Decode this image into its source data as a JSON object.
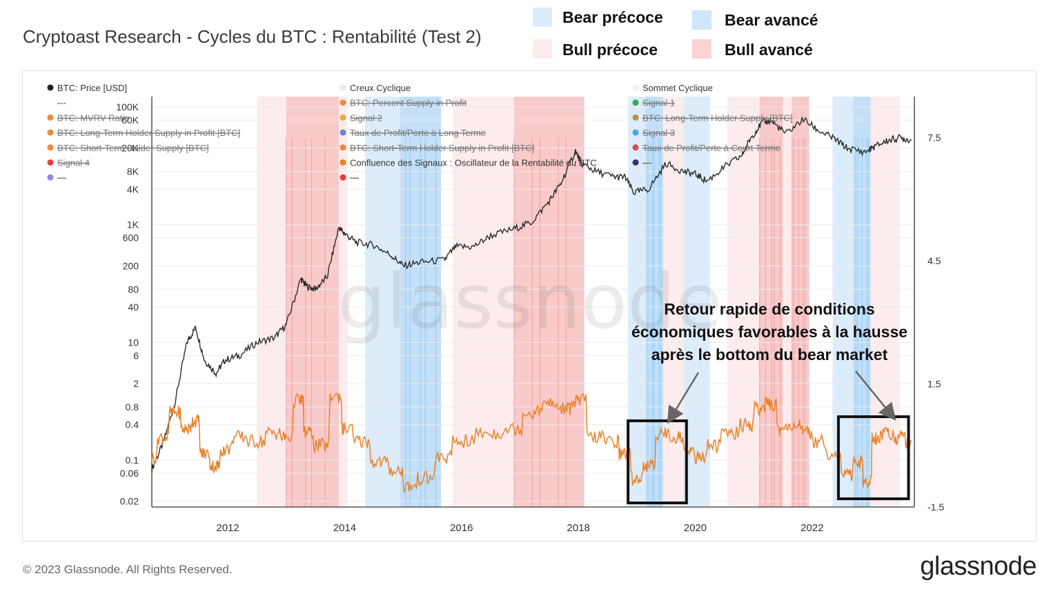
{
  "header": {
    "title": "Cryptoast Research - Cycles du BTC : Rentabilité (Test 2)"
  },
  "phase_legend": [
    {
      "label": "Bear précoce",
      "color": "#dcecfb"
    },
    {
      "label": "Bear avancé",
      "color": "#cfe5f9"
    },
    {
      "label": "Bull précoce",
      "color": "#fdeced"
    },
    {
      "label": "Bull avancé",
      "color": "#fad3d3"
    }
  ],
  "chart_legend": [
    {
      "label": "BTC: Price [USD]",
      "color": "#222222",
      "struck": false
    },
    {
      "label": "---",
      "color": "",
      "struck": false
    },
    {
      "label": "BTC: MVRV Ratio",
      "color": "#f0893a",
      "struck": true
    },
    {
      "label": "BTC: Long-Term Holder Supply in Profit [BTC]",
      "color": "#f0893a",
      "struck": true
    },
    {
      "label": "BTC: Short-Term Holder Supply [BTC]",
      "color": "#f0893a",
      "struck": true
    },
    {
      "label": "Signal 4",
      "color": "#e0403f",
      "struck": true
    },
    {
      "label": "---",
      "color": "#8b86e6",
      "struck": true
    },
    {
      "label": "Creux Cyclique",
      "color": "#dcecfb",
      "struck": false
    },
    {
      "label": "BTC: Percent Supply in Profit",
      "color": "#f0893a",
      "struck": true
    },
    {
      "label": "Signal 2",
      "color": "#f0a93a",
      "struck": true
    },
    {
      "label": "Taux de Profit/Perte à Long Terme",
      "color": "#6a86d6",
      "struck": true
    },
    {
      "label": "BTC: Short-Term Holder Supply in Profit [BTC]",
      "color": "#f0893a",
      "struck": true
    },
    {
      "label": "Confluence des Signaux : Oscillateur de la Rentabilité du BTC",
      "color": "#f0801a",
      "struck": false
    },
    {
      "label": "---",
      "color": "#e0403f",
      "struck": true
    },
    {
      "label": "Sommet Cyclique",
      "color": "#fdeced",
      "struck": false
    },
    {
      "label": "Signal 1",
      "color": "#3aa85a",
      "struck": true
    },
    {
      "label": "BTC: Long-Term Holder Supply [BTC]",
      "color": "#c09040",
      "struck": true
    },
    {
      "label": "Signal 3",
      "color": "#4aa8e0",
      "struck": true
    },
    {
      "label": "Taux de Profit/Perte à Court Terme",
      "color": "#d05050",
      "struck": true
    },
    {
      "label": "---",
      "color": "#2a3a66",
      "struck": true
    }
  ],
  "annotation": {
    "lines": [
      "Retour rapide de conditions",
      "économiques favorables à la hausse",
      "après le bottom du bear market"
    ]
  },
  "watermark": "glassnode",
  "footer": {
    "copyright": "© 2023 Glassnode. All Rights Reserved.",
    "brand": "glassnode"
  },
  "chart_data": {
    "type": "line",
    "x_ticks": [
      "2012",
      "2014",
      "2016",
      "2018",
      "2020",
      "2022"
    ],
    "x_range": [
      2010.7,
      2023.75
    ],
    "y_left_ticks": [
      "100K",
      "60K",
      "20K",
      "8K",
      "4K",
      "1K",
      "600",
      "200",
      "80",
      "40",
      "10",
      "6",
      "2",
      "0.8",
      "0.4",
      "0.1",
      "0.06",
      "0.02"
    ],
    "y_left_scale": "log",
    "y_left_range": [
      0.016,
      150000
    ],
    "y_right_ticks": [
      "7.5",
      "4.5",
      "1.5",
      "-1.5"
    ],
    "y_right_range": [
      -1.5,
      8.5
    ],
    "colors": {
      "price": "#2b2b2b",
      "oscillator": "#e8832a",
      "bull_early": "#fdeced",
      "bull_late": "#f8caca",
      "bear_early": "#dcecfb",
      "bear_late": "#c3e0f8"
    },
    "phases": [
      {
        "type": "bull_early",
        "start": 2012.5,
        "end": 2013.0
      },
      {
        "type": "bull_late",
        "start": 2013.0,
        "end": 2013.9
      },
      {
        "type": "bull_early",
        "start": 2013.9,
        "end": 2014.05
      },
      {
        "type": "bear_early",
        "start": 2014.35,
        "end": 2014.95
      },
      {
        "type": "bear_late",
        "start": 2014.95,
        "end": 2015.65
      },
      {
        "type": "bull_early",
        "start": 2015.85,
        "end": 2016.9
      },
      {
        "type": "bull_late",
        "start": 2016.9,
        "end": 2018.1
      },
      {
        "type": "bear_early",
        "start": 2018.85,
        "end": 2019.15
      },
      {
        "type": "bear_late",
        "start": 2019.15,
        "end": 2019.45
      },
      {
        "type": "bull_early",
        "start": 2019.45,
        "end": 2019.8
      },
      {
        "type": "bear_early",
        "start": 2019.8,
        "end": 2020.25
      },
      {
        "type": "bull_early",
        "start": 2020.55,
        "end": 2021.1
      },
      {
        "type": "bull_late",
        "start": 2021.1,
        "end": 2021.5
      },
      {
        "type": "bull_early",
        "start": 2021.5,
        "end": 2021.65
      },
      {
        "type": "bull_late",
        "start": 2021.65,
        "end": 2021.95
      },
      {
        "type": "bear_early",
        "start": 2022.35,
        "end": 2022.7
      },
      {
        "type": "bear_late",
        "start": 2022.7,
        "end": 2023.0
      },
      {
        "type": "bull_early",
        "start": 2023.0,
        "end": 2023.5
      }
    ],
    "series": [
      {
        "name": "BTC: Price [USD]",
        "axis": "left",
        "x": [
          2010.7,
          2010.9,
          2011.1,
          2011.3,
          2011.45,
          2011.6,
          2011.8,
          2011.95,
          2012.2,
          2012.5,
          2012.8,
          2013.0,
          2013.25,
          2013.35,
          2013.5,
          2013.7,
          2013.9,
          2014.0,
          2014.2,
          2014.5,
          2014.8,
          2015.0,
          2015.3,
          2015.7,
          2015.9,
          2016.2,
          2016.5,
          2016.9,
          2017.2,
          2017.5,
          2017.7,
          2017.95,
          2018.05,
          2018.3,
          2018.6,
          2018.8,
          2018.95,
          2019.2,
          2019.5,
          2019.8,
          2020.0,
          2020.2,
          2020.5,
          2020.8,
          2020.95,
          2021.15,
          2021.3,
          2021.55,
          2021.85,
          2022.1,
          2022.35,
          2022.6,
          2022.9,
          2023.1,
          2023.3,
          2023.5,
          2023.7
        ],
        "values": [
          0.07,
          0.2,
          1.0,
          10,
          18,
          5,
          3,
          5,
          6,
          10,
          12,
          20,
          120,
          90,
          80,
          130,
          900,
          700,
          500,
          450,
          300,
          200,
          230,
          250,
          420,
          420,
          650,
          850,
          1100,
          2500,
          5000,
          18000,
          11000,
          8000,
          6500,
          6400,
          3500,
          4000,
          11000,
          8000,
          7200,
          5500,
          9500,
          15000,
          30000,
          55000,
          58000,
          35000,
          62000,
          40000,
          30000,
          20000,
          17000,
          22000,
          27000,
          30000,
          27000
        ]
      },
      {
        "name": "Confluence des Signaux : Oscillateur de la Rentabilité du BTC",
        "axis": "right",
        "x": [
          2010.7,
          2010.9,
          2011.1,
          2011.3,
          2011.45,
          2011.6,
          2011.8,
          2011.95,
          2012.2,
          2012.5,
          2012.8,
          2013.0,
          2013.25,
          2013.35,
          2013.6,
          2013.9,
          2014.0,
          2014.3,
          2014.6,
          2014.9,
          2015.1,
          2015.4,
          2015.7,
          2016.0,
          2016.5,
          2016.9,
          2017.2,
          2017.5,
          2017.8,
          2018.0,
          2018.3,
          2018.6,
          2018.8,
          2019.0,
          2019.2,
          2019.45,
          2019.7,
          2019.9,
          2020.1,
          2020.3,
          2020.6,
          2020.9,
          2021.1,
          2021.3,
          2021.5,
          2021.7,
          2021.9,
          2022.1,
          2022.4,
          2022.6,
          2022.8,
          2022.95,
          2023.1,
          2023.3,
          2023.5,
          2023.7
        ],
        "values": [
          -0.3,
          0.2,
          0.8,
          0.4,
          0.6,
          -0.2,
          -0.5,
          -0.1,
          0.2,
          0.1,
          0.3,
          0.2,
          1.1,
          0.3,
          0.0,
          1.2,
          0.4,
          0.1,
          -0.4,
          -0.6,
          -1.0,
          -0.8,
          -0.3,
          0.1,
          0.3,
          0.4,
          0.8,
          1.0,
          0.9,
          1.1,
          0.2,
          0.1,
          -0.2,
          -0.8,
          -0.5,
          0.3,
          0.2,
          -0.1,
          -0.3,
          0.0,
          0.3,
          0.5,
          0.9,
          1.0,
          0.4,
          0.5,
          0.3,
          0.1,
          -0.2,
          -0.7,
          -0.4,
          -0.9,
          0.2,
          0.3,
          0.2,
          0.1
        ]
      }
    ],
    "highlight_boxes": [
      {
        "start": 2018.85,
        "end": 2019.85,
        "y_low": -1.4,
        "y_high": 0.6
      },
      {
        "start": 2022.45,
        "end": 2023.65,
        "y_low": -1.3,
        "y_high": 0.7
      }
    ]
  }
}
